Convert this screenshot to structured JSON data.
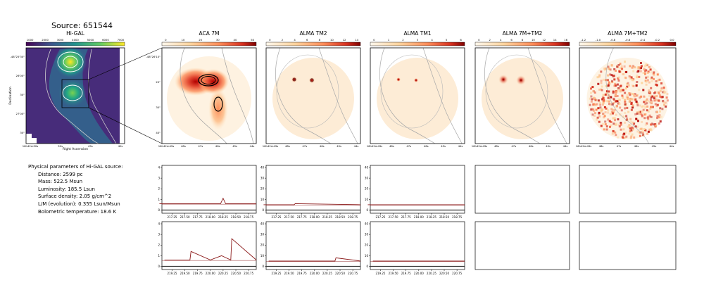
{
  "source_title": "Source: 651544",
  "colors": {
    "accent_line": "#8b1a1a",
    "contour": "#9a9a9a"
  },
  "params": {
    "header": "Physical parameters of Hi-GAL source:",
    "lines": [
      "Distance: 2599 pc",
      "Mass: 522.5 Msun",
      "Luminosity: 185.5 Lsun",
      "Surface density: 2.05 g/cm^2",
      "L/M (evolution): 0.355 Lsun/Msun",
      "Bolometric temperature: 18.6 K"
    ]
  },
  "chart_data": [
    {
      "type": "heatmap",
      "title": "Hi-GAL",
      "colorbar": {
        "ticks": [
          "1000",
          "2000",
          "3000",
          "4000",
          "5000",
          "6000",
          "7000"
        ],
        "cmap": "viridis"
      },
      "xlabel": "Right Ascension",
      "ylabel": "Declination",
      "xticks": [
        "16h42m50s",
        "50s",
        "45s",
        "40s"
      ],
      "yticks": [
        "-48°25'30\"",
        "26'00\"",
        "30\"",
        "27'00\"",
        "30\""
      ]
    },
    {
      "type": "heatmap",
      "title": "ACA 7M",
      "colorbar": {
        "ticks": [
          "0",
          "10",
          "20",
          "30",
          "40",
          "50"
        ],
        "cmap": "OrRd"
      },
      "yticks": [
        "-48°26'10\"",
        "20\"",
        "30\"",
        "40\""
      ],
      "xticks": [
        "16h42m49s",
        "48s",
        "47s",
        "46s",
        "45s",
        "44s"
      ]
    },
    {
      "type": "heatmap",
      "title": "ALMA TM2",
      "colorbar": {
        "ticks": [
          "0",
          "2",
          "4",
          "6",
          "8",
          "10",
          "12",
          "14"
        ],
        "cmap": "OrRd"
      },
      "xticks": [
        "16h42m49s",
        "48s",
        "47s",
        "46s",
        "45s",
        "44s"
      ]
    },
    {
      "type": "heatmap",
      "title": "ALMA TM1",
      "colorbar": {
        "ticks": [
          "0",
          "1",
          "2",
          "3",
          "4",
          "5",
          "6"
        ],
        "cmap": "OrRd"
      },
      "xticks": [
        "16h42m49s",
        "48s",
        "47s",
        "46s",
        "45s",
        "44s"
      ]
    },
    {
      "type": "heatmap",
      "title": "ALMA 7M+TM2",
      "colorbar": {
        "ticks": [
          "0",
          "2",
          "4",
          "6",
          "8",
          "10",
          "12",
          "14",
          "16"
        ],
        "cmap": "OrRd"
      },
      "xticks": [
        "16h42m49s",
        "48s",
        "47s",
        "46s",
        "45s",
        "44s"
      ]
    },
    {
      "type": "heatmap",
      "title": "ALMA 7M+TM2",
      "colorbar": {
        "ticks": [
          "-1.2",
          "-1.0",
          "-0.8",
          "-0.6",
          "-0.4",
          "-0.2",
          "0.0"
        ],
        "cmap": "OrRd"
      },
      "xticks": [
        "16h42m49s",
        "48s",
        "47s",
        "46s",
        "45s",
        "44s"
      ]
    },
    {
      "type": "line",
      "row": 1,
      "xticks": [
        "217.25",
        "217.50",
        "217.75",
        "218.00",
        "218.25",
        "218.50",
        "218.75"
      ],
      "yticks": [
        "0",
        "1",
        "2",
        "3",
        "4"
      ],
      "ylim": [
        -0.3,
        4.2
      ],
      "series": [
        {
          "x": [
            217.0,
            217.5,
            218.0,
            218.2,
            218.25,
            218.3,
            218.9
          ],
          "values": [
            0.6,
            0.6,
            0.6,
            0.6,
            1.1,
            0.6,
            0.6
          ]
        }
      ]
    },
    {
      "type": "line",
      "row": 1,
      "xticks": [
        "217.25",
        "217.50",
        "217.75",
        "218.00",
        "218.25",
        "218.50",
        "218.75"
      ],
      "yticks": [
        "0",
        "10",
        "20",
        "30",
        "40"
      ],
      "ylim": [
        -3,
        42
      ],
      "series": [
        {
          "x": [
            217.0,
            217.6,
            217.62,
            218.9
          ],
          "values": [
            5,
            5,
            6,
            5
          ]
        }
      ]
    },
    {
      "type": "line",
      "row": 1,
      "xticks": [
        "217.25",
        "217.50",
        "217.75",
        "218.00",
        "218.25",
        "218.50",
        "218.75"
      ],
      "yticks": [
        "0",
        "10",
        "20",
        "30",
        "40"
      ],
      "ylim": [
        -3,
        42
      ],
      "series": [
        {
          "x": [
            217.0,
            218.9
          ],
          "values": [
            5,
            5
          ]
        }
      ]
    },
    {
      "type": "line",
      "row": 2,
      "xticks": [
        "219.25",
        "219.50",
        "219.75",
        "220.00",
        "220.25",
        "220.50",
        "220.75"
      ],
      "yticks": [
        "0",
        "1",
        "2",
        "3",
        "4"
      ],
      "ylim": [
        -0.3,
        4.2
      ],
      "series": [
        {
          "x": [
            219.1,
            219.6,
            219.62,
            220.0,
            220.22,
            220.4,
            220.42,
            220.9
          ],
          "values": [
            0.6,
            0.6,
            1.4,
            0.6,
            1.0,
            0.6,
            2.6,
            0.6
          ]
        }
      ]
    },
    {
      "type": "line",
      "row": 2,
      "xticks": [
        "219.25",
        "219.50",
        "219.75",
        "220.00",
        "220.25",
        "220.50",
        "220.75"
      ],
      "yticks": [
        "0",
        "10",
        "20",
        "30",
        "40"
      ],
      "ylim": [
        -3,
        42
      ],
      "series": [
        {
          "x": [
            219.1,
            220.4,
            220.42,
            220.9
          ],
          "values": [
            5,
            5,
            8,
            5
          ]
        }
      ]
    },
    {
      "type": "line",
      "row": 2,
      "xticks": [
        "219.25",
        "219.50",
        "219.75",
        "220.00",
        "220.25",
        "220.50",
        "220.75"
      ],
      "yticks": [
        "0",
        "10",
        "20",
        "30",
        "40"
      ],
      "ylim": [
        -3,
        42
      ],
      "series": [
        {
          "x": [
            219.1,
            220.9
          ],
          "values": [
            5,
            5
          ]
        }
      ]
    }
  ]
}
